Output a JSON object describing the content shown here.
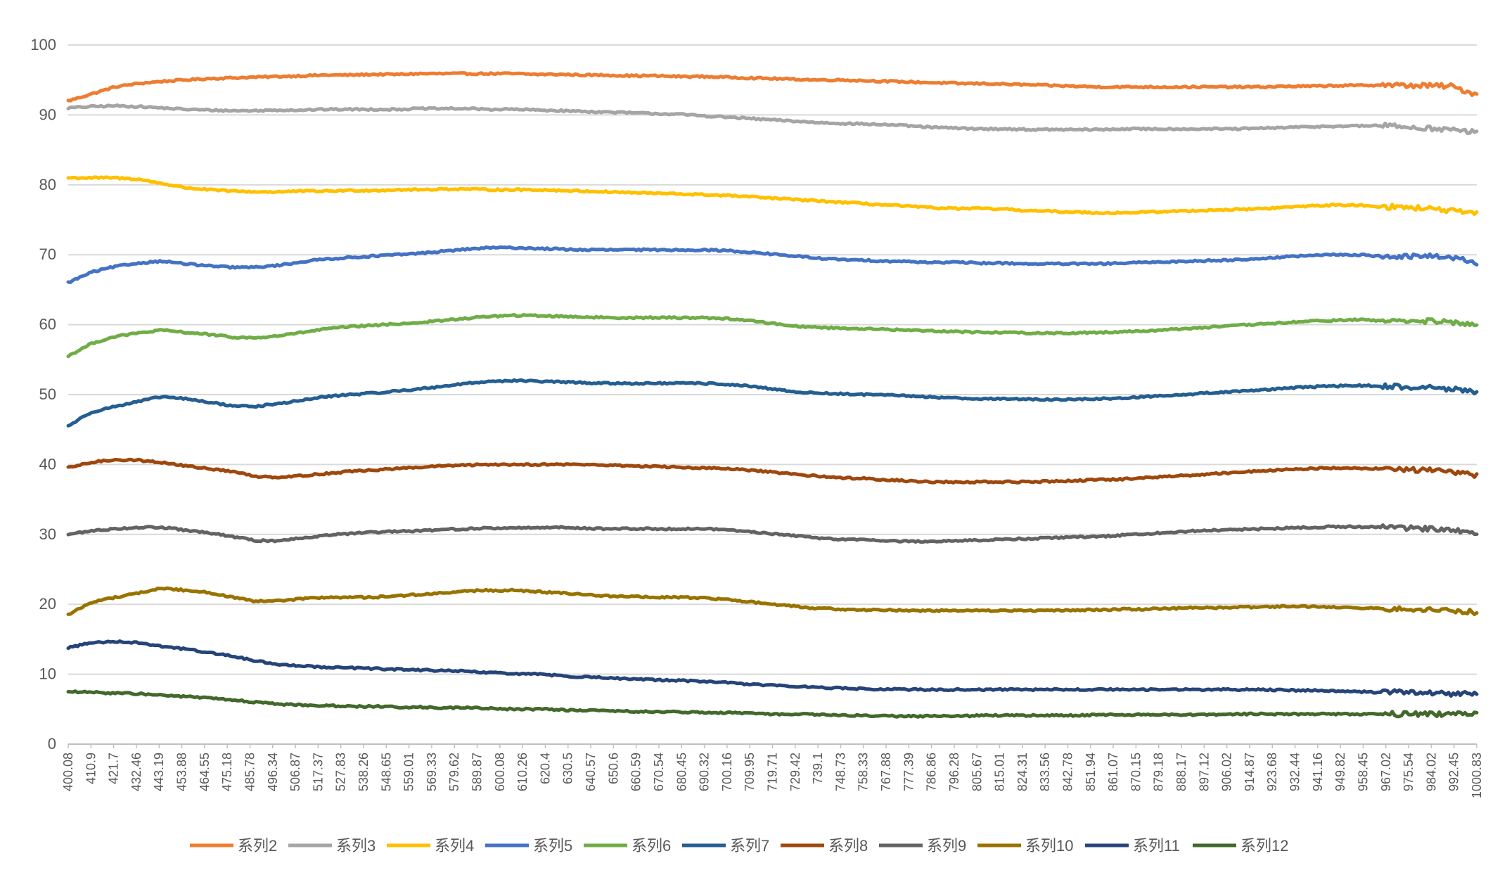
{
  "chart_data": {
    "type": "line",
    "title": "",
    "xlabel": "",
    "ylabel": "",
    "ylim": [
      0,
      100
    ],
    "yticks": [
      0,
      10,
      20,
      30,
      40,
      50,
      60,
      70,
      80,
      90,
      100
    ],
    "xlim": [
      400.08,
      1000.83
    ],
    "grid": true,
    "legend_position": "bottom",
    "x_tick_labels": [
      "400.08",
      "410.9",
      "421.7",
      "432.46",
      "443.19",
      "453.88",
      "464.55",
      "475.18",
      "485.78",
      "496.34",
      "506.87",
      "517.37",
      "527.83",
      "538.26",
      "548.65",
      "559.01",
      "569.33",
      "579.62",
      "589.87",
      "600.08",
      "610.26",
      "620.4",
      "630.5",
      "640.57",
      "650.6",
      "660.59",
      "670.54",
      "680.45",
      "690.32",
      "700.16",
      "709.95",
      "719.71",
      "729.42",
      "739.1",
      "748.73",
      "758.33",
      "767.88",
      "777.39",
      "786.86",
      "796.28",
      "805.67",
      "815.01",
      "824.31",
      "833.56",
      "842.78",
      "851.94",
      "861.07",
      "870.15",
      "879.18",
      "888.17",
      "897.12",
      "906.02",
      "914.87",
      "923.68",
      "932.44",
      "941.16",
      "949.82",
      "958.45",
      "967.02",
      "975.54",
      "984.02",
      "992.45",
      "1000.83"
    ],
    "x": [
      400,
      410,
      420,
      430,
      440,
      450,
      460,
      470,
      480,
      490,
      500,
      510,
      520,
      530,
      540,
      550,
      560,
      570,
      580,
      590,
      600,
      610,
      620,
      630,
      640,
      650,
      660,
      670,
      680,
      690,
      700,
      710,
      720,
      730,
      740,
      750,
      760,
      770,
      780,
      790,
      800,
      810,
      820,
      830,
      840,
      850,
      860,
      870,
      880,
      890,
      900,
      910,
      920,
      930,
      940,
      950,
      960,
      970,
      980,
      990,
      1000
    ],
    "series": [
      {
        "name": "系列2",
        "color": "#ED7D31",
        "values": [
          92,
          93,
          94,
          94.5,
          94.8,
          95,
          95.2,
          95.3,
          95.4,
          95.5,
          95.6,
          95.7,
          95.7,
          95.8,
          95.8,
          95.9,
          95.9,
          95.9,
          95.9,
          95.9,
          95.8,
          95.8,
          95.7,
          95.7,
          95.6,
          95.6,
          95.5,
          95.5,
          95.4,
          95.3,
          95.2,
          95.1,
          95,
          95,
          94.9,
          94.8,
          94.7,
          94.6,
          94.5,
          94.5,
          94.4,
          94.3,
          94.2,
          94.1,
          94,
          94,
          94,
          94,
          94,
          94,
          94,
          94,
          94.1,
          94.1,
          94.2,
          94.2,
          94.3,
          94.2,
          94.2,
          94.1,
          93
        ]
      },
      {
        "name": "系列3",
        "color": "#A5A5A5",
        "values": [
          91,
          91.2,
          91.3,
          91.2,
          91,
          90.8,
          90.7,
          90.6,
          90.6,
          90.7,
          90.7,
          90.8,
          90.8,
          90.8,
          90.8,
          90.9,
          90.9,
          90.9,
          90.8,
          90.8,
          90.7,
          90.6,
          90.5,
          90.4,
          90.3,
          90.2,
          90.1,
          89.9,
          89.7,
          89.5,
          89.3,
          89.1,
          88.9,
          88.8,
          88.7,
          88.6,
          88.4,
          88.2,
          88.1,
          88,
          88,
          87.9,
          87.9,
          87.9,
          87.9,
          88,
          88,
          88,
          88,
          88,
          88,
          88.1,
          88.2,
          88.3,
          88.4,
          88.4,
          88.5,
          88.3,
          88.1,
          87.9,
          87.5
        ]
      },
      {
        "name": "系列4",
        "color": "#FFC000",
        "values": [
          81,
          81,
          81,
          80.8,
          80.2,
          79.6,
          79.3,
          79.1,
          79,
          79,
          79.1,
          79.1,
          79.2,
          79.2,
          79.3,
          79.3,
          79.4,
          79.4,
          79.3,
          79.3,
          79.3,
          79.2,
          79.1,
          79,
          78.9,
          78.8,
          78.7,
          78.6,
          78.5,
          78.3,
          78.1,
          77.9,
          77.7,
          77.5,
          77.3,
          77.1,
          76.9,
          76.7,
          76.6,
          76.6,
          76.5,
          76.3,
          76.2,
          76.1,
          76,
          76,
          76.1,
          76.2,
          76.3,
          76.4,
          76.5,
          76.6,
          76.8,
          77,
          77.1,
          77.1,
          76.9,
          76.8,
          76.6,
          76.3,
          75.8
        ]
      },
      {
        "name": "系列5",
        "color": "#4472C4",
        "values": [
          66,
          67.5,
          68.3,
          68.8,
          69.1,
          68.7,
          68.4,
          68.2,
          68.2,
          68.5,
          69,
          69.4,
          69.6,
          69.8,
          70,
          70.2,
          70.5,
          70.8,
          71,
          71,
          70.9,
          70.8,
          70.7,
          70.7,
          70.7,
          70.7,
          70.7,
          70.7,
          70.6,
          70.4,
          70.1,
          69.8,
          69.5,
          69.3,
          69.2,
          69.1,
          69,
          68.9,
          68.9,
          68.8,
          68.8,
          68.7,
          68.7,
          68.7,
          68.7,
          68.8,
          68.9,
          69,
          69.1,
          69.2,
          69.3,
          69.5,
          69.7,
          69.9,
          70,
          70,
          69.8,
          69.7,
          69.8,
          69.7,
          68.8
        ]
      },
      {
        "name": "系列6",
        "color": "#70AD47",
        "values": [
          55.5,
          57.3,
          58.3,
          58.8,
          59.2,
          58.9,
          58.6,
          58.2,
          58.1,
          58.4,
          58.9,
          59.4,
          59.7,
          59.9,
          60.1,
          60.3,
          60.6,
          60.9,
          61.2,
          61.3,
          61.3,
          61.2,
          61.1,
          61,
          61,
          61,
          61,
          61,
          60.9,
          60.6,
          60.2,
          59.8,
          59.6,
          59.5,
          59.4,
          59.3,
          59.2,
          59.1,
          59,
          58.9,
          58.9,
          58.8,
          58.8,
          58.8,
          58.9,
          59,
          59.1,
          59.3,
          59.5,
          59.7,
          59.9,
          60.1,
          60.3,
          60.5,
          60.6,
          60.7,
          60.6,
          60.5,
          60.5,
          60.3,
          60
        ]
      },
      {
        "name": "系列7",
        "color": "#255E91",
        "values": [
          45.5,
          47.5,
          48.3,
          49,
          49.7,
          49.4,
          48.9,
          48.4,
          48.3,
          48.7,
          49.2,
          49.7,
          50,
          50.2,
          50.5,
          50.8,
          51.2,
          51.6,
          51.9,
          52,
          51.9,
          51.8,
          51.7,
          51.6,
          51.6,
          51.6,
          51.6,
          51.6,
          51.5,
          51.2,
          50.8,
          50.4,
          50.2,
          50.1,
          50,
          49.9,
          49.8,
          49.6,
          49.5,
          49.4,
          49.4,
          49.3,
          49.3,
          49.3,
          49.4,
          49.5,
          49.7,
          49.9,
          50.1,
          50.3,
          50.5,
          50.7,
          50.9,
          51.1,
          51.2,
          51.3,
          51.2,
          51.1,
          51,
          50.8,
          50.3
        ]
      },
      {
        "name": "系列8",
        "color": "#9E480E",
        "values": [
          39.5,
          40.3,
          40.7,
          40.6,
          40.3,
          39.8,
          39.4,
          39,
          38.3,
          38.2,
          38.4,
          38.7,
          39,
          39.2,
          39.4,
          39.6,
          39.8,
          39.9,
          40,
          40,
          40,
          40,
          40,
          39.9,
          39.8,
          39.7,
          39.6,
          39.5,
          39.4,
          39.2,
          38.9,
          38.6,
          38.3,
          38.1,
          38,
          37.8,
          37.6,
          37.5,
          37.5,
          37.5,
          37.5,
          37.5,
          37.6,
          37.7,
          37.8,
          37.9,
          38.1,
          38.3,
          38.5,
          38.7,
          38.9,
          39.1,
          39.3,
          39.4,
          39.5,
          39.5,
          39.4,
          39.3,
          39.2,
          39,
          38.4
        ]
      },
      {
        "name": "系列9",
        "color": "#636363",
        "values": [
          30,
          30.5,
          30.8,
          31,
          31,
          30.6,
          30.2,
          29.7,
          29.1,
          29.1,
          29.5,
          29.9,
          30.1,
          30.3,
          30.4,
          30.5,
          30.7,
          30.8,
          30.9,
          30.9,
          31,
          31,
          30.9,
          30.8,
          30.8,
          30.8,
          30.8,
          30.8,
          30.7,
          30.4,
          30.1,
          29.8,
          29.5,
          29.3,
          29.2,
          29.1,
          29,
          29,
          29.1,
          29.2,
          29.3,
          29.4,
          29.5,
          29.6,
          29.7,
          29.9,
          30.1,
          30.3,
          30.5,
          30.6,
          30.7,
          30.8,
          30.9,
          31,
          31.1,
          31.1,
          31,
          30.9,
          30.8,
          30.7,
          30.3
        ]
      },
      {
        "name": "系列10",
        "color": "#997300",
        "values": [
          18.5,
          20.3,
          21,
          21.6,
          22.3,
          22,
          21.7,
          21,
          20.4,
          20.5,
          20.8,
          21,
          21,
          21,
          21.2,
          21.4,
          21.6,
          21.9,
          22,
          22,
          21.8,
          21.6,
          21.4,
          21.2,
          21.1,
          21,
          21,
          20.9,
          20.7,
          20.4,
          20,
          19.7,
          19.4,
          19.3,
          19.2,
          19.2,
          19.1,
          19.1,
          19.1,
          19.1,
          19.1,
          19.1,
          19.1,
          19.2,
          19.2,
          19.3,
          19.3,
          19.4,
          19.5,
          19.5,
          19.6,
          19.6,
          19.7,
          19.7,
          19.6,
          19.5,
          19.4,
          19.3,
          19.2,
          19,
          18.9
        ]
      },
      {
        "name": "系列11",
        "color": "#264478",
        "values": [
          13.8,
          14.5,
          14.7,
          14.5,
          14,
          13.6,
          13.1,
          12.6,
          11.9,
          11.4,
          11.2,
          11,
          10.9,
          10.8,
          10.7,
          10.6,
          10.5,
          10.4,
          10.2,
          10.1,
          10,
          9.8,
          9.6,
          9.5,
          9.3,
          9.2,
          9.1,
          9,
          8.8,
          8.6,
          8.4,
          8.3,
          8.1,
          8,
          7.9,
          7.9,
          7.8,
          7.8,
          7.8,
          7.8,
          7.8,
          7.8,
          7.8,
          7.8,
          7.8,
          7.8,
          7.8,
          7.8,
          7.8,
          7.8,
          7.8,
          7.8,
          7.7,
          7.7,
          7.6,
          7.5,
          7.4,
          7.4,
          7.3,
          7.2,
          7.1
        ]
      },
      {
        "name": "系列12",
        "color": "#43682B",
        "values": [
          7.5,
          7.4,
          7.3,
          7.2,
          7,
          6.8,
          6.6,
          6.3,
          6,
          5.7,
          5.6,
          5.5,
          5.4,
          5.4,
          5.3,
          5.3,
          5.2,
          5.2,
          5.1,
          5,
          5,
          4.9,
          4.8,
          4.8,
          4.7,
          4.6,
          4.6,
          4.5,
          4.5,
          4.4,
          4.3,
          4.3,
          4.2,
          4.1,
          4.1,
          4,
          4,
          4,
          4,
          4.1,
          4.1,
          4.1,
          4.1,
          4.1,
          4.2,
          4.2,
          4.2,
          4.2,
          4.2,
          4.2,
          4.3,
          4.3,
          4.3,
          4.3,
          4.3,
          4.3,
          4.3,
          4.3,
          4.3,
          4.3,
          4.3
        ]
      }
    ]
  }
}
